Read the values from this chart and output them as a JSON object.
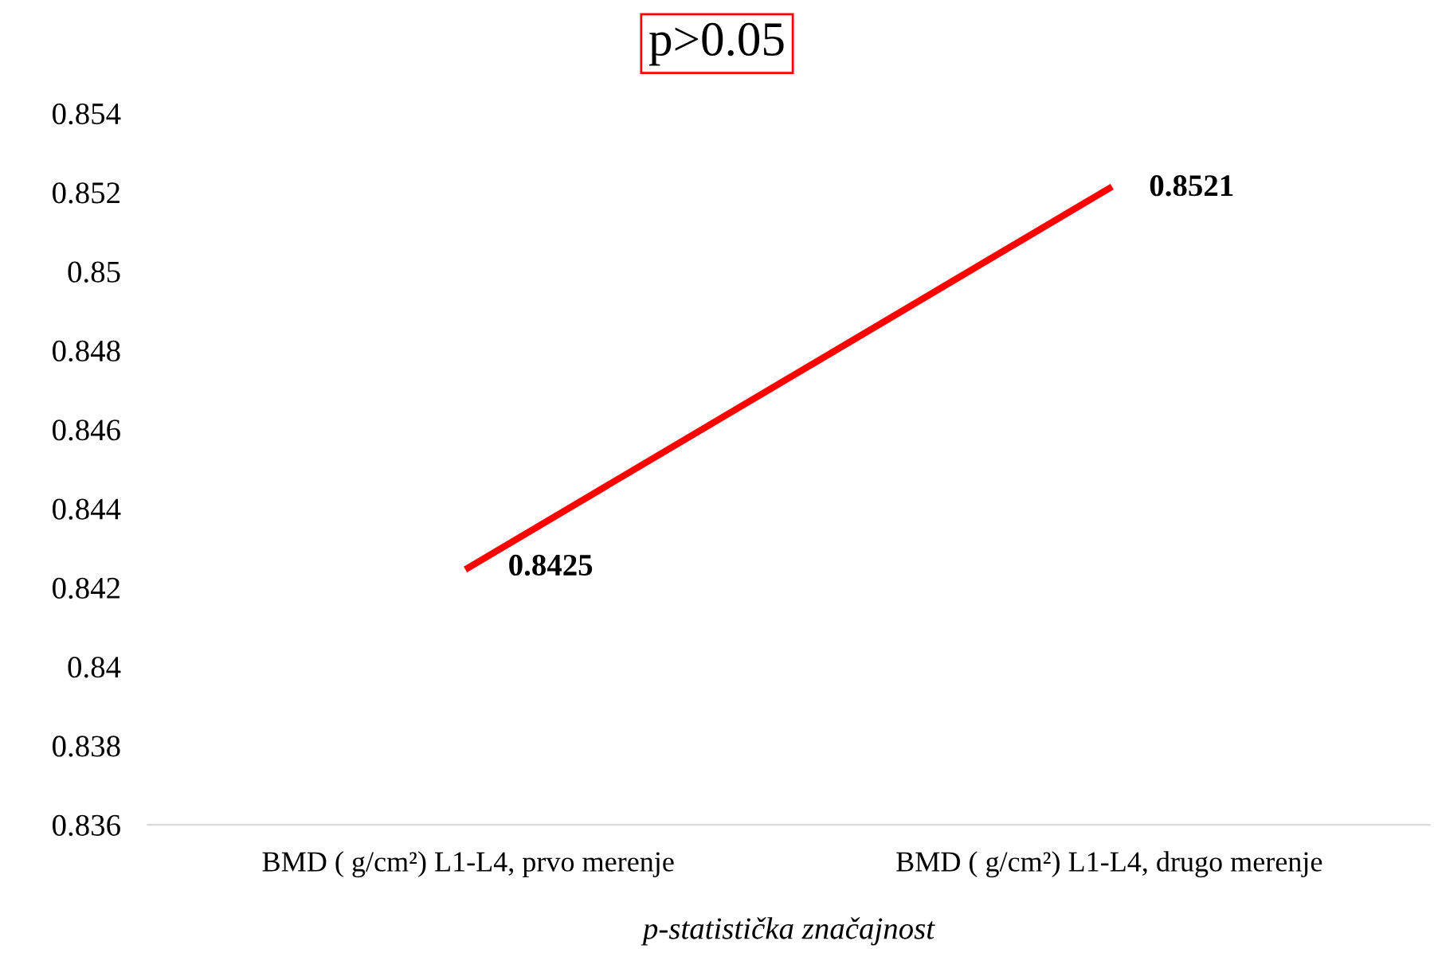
{
  "chart_data": {
    "type": "line",
    "title": "p>0.05",
    "xlabel": "p-statistička značajnost",
    "categories": [
      "BMD ( g/cm²) L1-L4, prvo merenje",
      "BMD ( g/cm²) L1-L4, drugo merenje"
    ],
    "series": [
      {
        "color": "#ff0000",
        "values": [
          0.8425,
          0.8521
        ]
      }
    ],
    "ylim": [
      0.836,
      0.854
    ],
    "yticks": [
      0.836,
      0.838,
      0.84,
      0.842,
      0.844,
      0.846,
      0.848,
      0.85,
      0.852,
      0.854
    ],
    "data_labels": true,
    "grid": false,
    "legend": false,
    "marker": "none",
    "line_style": "solid"
  }
}
